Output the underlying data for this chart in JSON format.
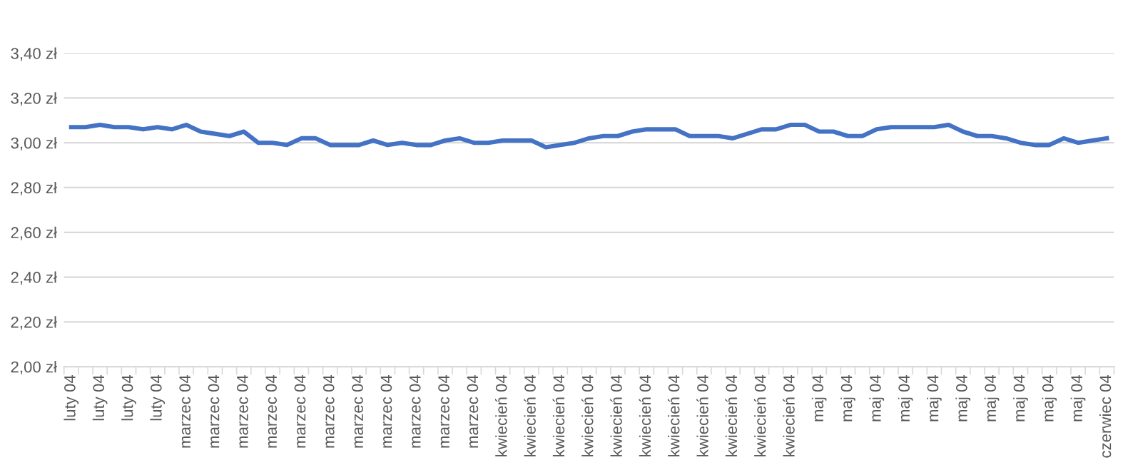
{
  "chart_data": {
    "type": "line",
    "categories": [
      "luty 04",
      null,
      "luty 04",
      null,
      "luty 04",
      null,
      "luty 04",
      null,
      "marzec 04",
      null,
      "marzec 04",
      null,
      "marzec 04",
      null,
      "marzec 04",
      null,
      "marzec 04",
      null,
      "marzec 04",
      null,
      "marzec 04",
      null,
      "marzec 04",
      null,
      "marzec 04",
      null,
      "marzec 04",
      null,
      "marzec 04",
      null,
      "kwiecień 04",
      null,
      "kwiecień 04",
      null,
      "kwiecień 04",
      null,
      "kwiecień 04",
      null,
      "kwiecień 04",
      null,
      "kwiecień 04",
      null,
      "kwiecień 04",
      null,
      "kwiecień 04",
      null,
      "kwiecień 04",
      null,
      "kwiecień 04",
      null,
      "kwiecień 04",
      null,
      "maj 04",
      null,
      "maj 04",
      null,
      "maj 04",
      null,
      "maj 04",
      null,
      "maj 04",
      null,
      "maj 04",
      null,
      "maj 04",
      null,
      "maj 04",
      null,
      "maj 04",
      null,
      "maj 04",
      null,
      "czerwiec 04"
    ],
    "series": [
      {
        "color": "#4472c4",
        "values": [
          3.07,
          3.07,
          3.08,
          3.07,
          3.07,
          3.06,
          3.07,
          3.06,
          3.08,
          3.05,
          3.04,
          3.03,
          3.05,
          3.0,
          3.0,
          2.99,
          3.02,
          3.02,
          2.99,
          2.99,
          2.99,
          3.01,
          2.99,
          3.0,
          2.99,
          2.99,
          3.01,
          3.02,
          3.0,
          3.0,
          3.01,
          3.01,
          3.01,
          2.98,
          2.99,
          3.0,
          3.02,
          3.03,
          3.03,
          3.05,
          3.06,
          3.06,
          3.06,
          3.03,
          3.03,
          3.03,
          3.02,
          3.04,
          3.06,
          3.06,
          3.08,
          3.08,
          3.05,
          3.05,
          3.03,
          3.03,
          3.06,
          3.07,
          3.07,
          3.07,
          3.07,
          3.08,
          3.05,
          3.03,
          3.03,
          3.02,
          3.0,
          2.99,
          2.99,
          3.02,
          3.0,
          3.01,
          3.02
        ]
      }
    ],
    "ylim": [
      2.0,
      3.4
    ],
    "yticks": [
      {
        "value": 2.0,
        "label": "2,00 zł"
      },
      {
        "value": 2.2,
        "label": "2,20 zł"
      },
      {
        "value": 2.4,
        "label": "2,40 zł"
      },
      {
        "value": 2.6,
        "label": "2,60 zł"
      },
      {
        "value": 2.8,
        "label": "2,80 zł"
      },
      {
        "value": 3.0,
        "label": "3,00 zł"
      },
      {
        "value": 3.2,
        "label": "3,20 zł"
      },
      {
        "value": 3.4,
        "label": "3,40 zł"
      }
    ],
    "grid": "y",
    "marker": "none",
    "line_style": "solid"
  }
}
